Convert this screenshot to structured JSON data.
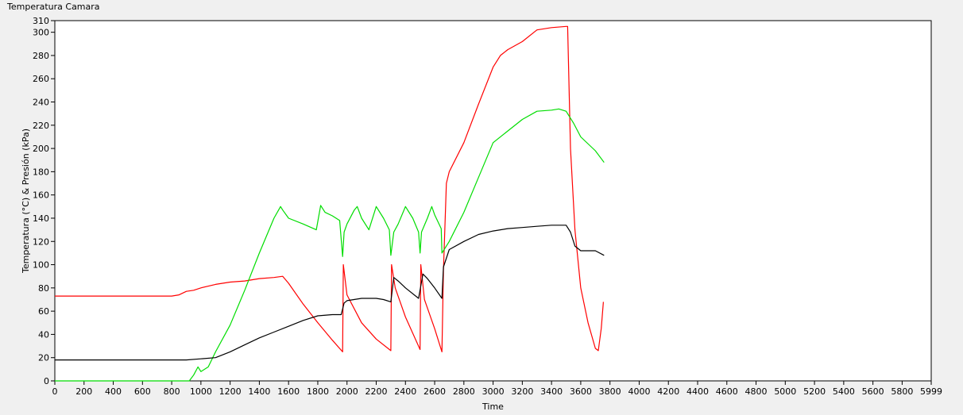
{
  "window": {
    "graph_title": "Temperatura Camara"
  },
  "chart_data": {
    "type": "line",
    "title": "Temperatura Camara",
    "xlabel": "Time",
    "ylabel": "Temperatura (°C) & Presión (kPa)",
    "xlim": [
      0,
      5999
    ],
    "ylim": [
      0,
      310
    ],
    "x_ticks": [
      0,
      200,
      400,
      600,
      800,
      1000,
      1200,
      1400,
      1600,
      1800,
      2000,
      2200,
      2400,
      2600,
      2800,
      3000,
      3200,
      3400,
      3600,
      3800,
      4000,
      4200,
      4400,
      4600,
      4800,
      5000,
      5200,
      5400,
      5600,
      5800,
      5999
    ],
    "y_ticks": [
      0,
      20,
      40,
      60,
      80,
      100,
      120,
      140,
      160,
      180,
      200,
      220,
      240,
      260,
      280,
      300,
      310
    ],
    "grid": false,
    "background": "#ffffff",
    "series": [
      {
        "color": "#ff0000",
        "points": [
          [
            0,
            73
          ],
          [
            780,
            73
          ],
          [
            800,
            73
          ],
          [
            850,
            74
          ],
          [
            900,
            77
          ],
          [
            950,
            78
          ],
          [
            1000,
            80
          ],
          [
            1100,
            83
          ],
          [
            1200,
            85
          ],
          [
            1300,
            86
          ],
          [
            1400,
            88
          ],
          [
            1500,
            89
          ],
          [
            1560,
            90
          ],
          [
            1600,
            84
          ],
          [
            1700,
            66
          ],
          [
            1800,
            50
          ],
          [
            1900,
            35
          ],
          [
            1970,
            25
          ],
          [
            1975,
            100
          ],
          [
            2000,
            74
          ],
          [
            2100,
            50
          ],
          [
            2200,
            36
          ],
          [
            2300,
            26
          ],
          [
            2305,
            100
          ],
          [
            2330,
            80
          ],
          [
            2400,
            55
          ],
          [
            2500,
            27
          ],
          [
            2505,
            100
          ],
          [
            2530,
            70
          ],
          [
            2600,
            45
          ],
          [
            2650,
            25
          ],
          [
            2660,
            95
          ],
          [
            2680,
            170
          ],
          [
            2700,
            180
          ],
          [
            2800,
            205
          ],
          [
            2900,
            238
          ],
          [
            3000,
            270
          ],
          [
            3050,
            280
          ],
          [
            3100,
            285
          ],
          [
            3200,
            292
          ],
          [
            3300,
            302
          ],
          [
            3400,
            304
          ],
          [
            3500,
            305
          ],
          [
            3510,
            305
          ],
          [
            3530,
            200
          ],
          [
            3560,
            130
          ],
          [
            3600,
            80
          ],
          [
            3650,
            50
          ],
          [
            3700,
            28
          ],
          [
            3720,
            26
          ],
          [
            3740,
            45
          ],
          [
            3755,
            68
          ]
        ]
      },
      {
        "color": "#00dd00",
        "points": [
          [
            0,
            0
          ],
          [
            920,
            0
          ],
          [
            950,
            5
          ],
          [
            980,
            12
          ],
          [
            1000,
            8
          ],
          [
            1050,
            12
          ],
          [
            1100,
            25
          ],
          [
            1200,
            48
          ],
          [
            1300,
            78
          ],
          [
            1400,
            110
          ],
          [
            1500,
            140
          ],
          [
            1545,
            150
          ],
          [
            1560,
            147
          ],
          [
            1600,
            140
          ],
          [
            1700,
            135
          ],
          [
            1790,
            130
          ],
          [
            1820,
            151
          ],
          [
            1850,
            145
          ],
          [
            1900,
            142
          ],
          [
            1950,
            138
          ],
          [
            1970,
            107
          ],
          [
            1980,
            128
          ],
          [
            2000,
            135
          ],
          [
            2050,
            147
          ],
          [
            2070,
            150
          ],
          [
            2100,
            140
          ],
          [
            2150,
            130
          ],
          [
            2200,
            150
          ],
          [
            2250,
            140
          ],
          [
            2290,
            130
          ],
          [
            2300,
            108
          ],
          [
            2320,
            128
          ],
          [
            2350,
            135
          ],
          [
            2400,
            150
          ],
          [
            2450,
            140
          ],
          [
            2490,
            128
          ],
          [
            2500,
            110
          ],
          [
            2510,
            128
          ],
          [
            2550,
            140
          ],
          [
            2580,
            150
          ],
          [
            2600,
            143
          ],
          [
            2645,
            131
          ],
          [
            2650,
            110
          ],
          [
            2700,
            120
          ],
          [
            2800,
            145
          ],
          [
            2900,
            175
          ],
          [
            3000,
            205
          ],
          [
            3100,
            215
          ],
          [
            3200,
            225
          ],
          [
            3300,
            232
          ],
          [
            3400,
            233
          ],
          [
            3450,
            234
          ],
          [
            3500,
            232
          ],
          [
            3550,
            222
          ],
          [
            3600,
            210
          ],
          [
            3700,
            198
          ],
          [
            3760,
            188
          ]
        ]
      },
      {
        "color": "#000000",
        "points": [
          [
            0,
            18
          ],
          [
            900,
            18
          ],
          [
            1000,
            19
          ],
          [
            1100,
            20
          ],
          [
            1200,
            25
          ],
          [
            1300,
            31
          ],
          [
            1400,
            37
          ],
          [
            1500,
            42
          ],
          [
            1600,
            47
          ],
          [
            1700,
            52
          ],
          [
            1800,
            56
          ],
          [
            1900,
            57
          ],
          [
            1960,
            57
          ],
          [
            1980,
            67
          ],
          [
            2000,
            69
          ],
          [
            2100,
            71
          ],
          [
            2200,
            71
          ],
          [
            2250,
            70
          ],
          [
            2300,
            68
          ],
          [
            2320,
            89
          ],
          [
            2350,
            86
          ],
          [
            2400,
            80
          ],
          [
            2490,
            71
          ],
          [
            2520,
            92
          ],
          [
            2550,
            88
          ],
          [
            2600,
            80
          ],
          [
            2650,
            71
          ],
          [
            2660,
            98
          ],
          [
            2700,
            113
          ],
          [
            2800,
            120
          ],
          [
            2900,
            126
          ],
          [
            3000,
            129
          ],
          [
            3100,
            131
          ],
          [
            3200,
            132
          ],
          [
            3300,
            133
          ],
          [
            3400,
            134
          ],
          [
            3500,
            134
          ],
          [
            3530,
            128
          ],
          [
            3560,
            116
          ],
          [
            3600,
            112
          ],
          [
            3650,
            112
          ],
          [
            3700,
            112
          ],
          [
            3760,
            108
          ]
        ]
      }
    ]
  }
}
